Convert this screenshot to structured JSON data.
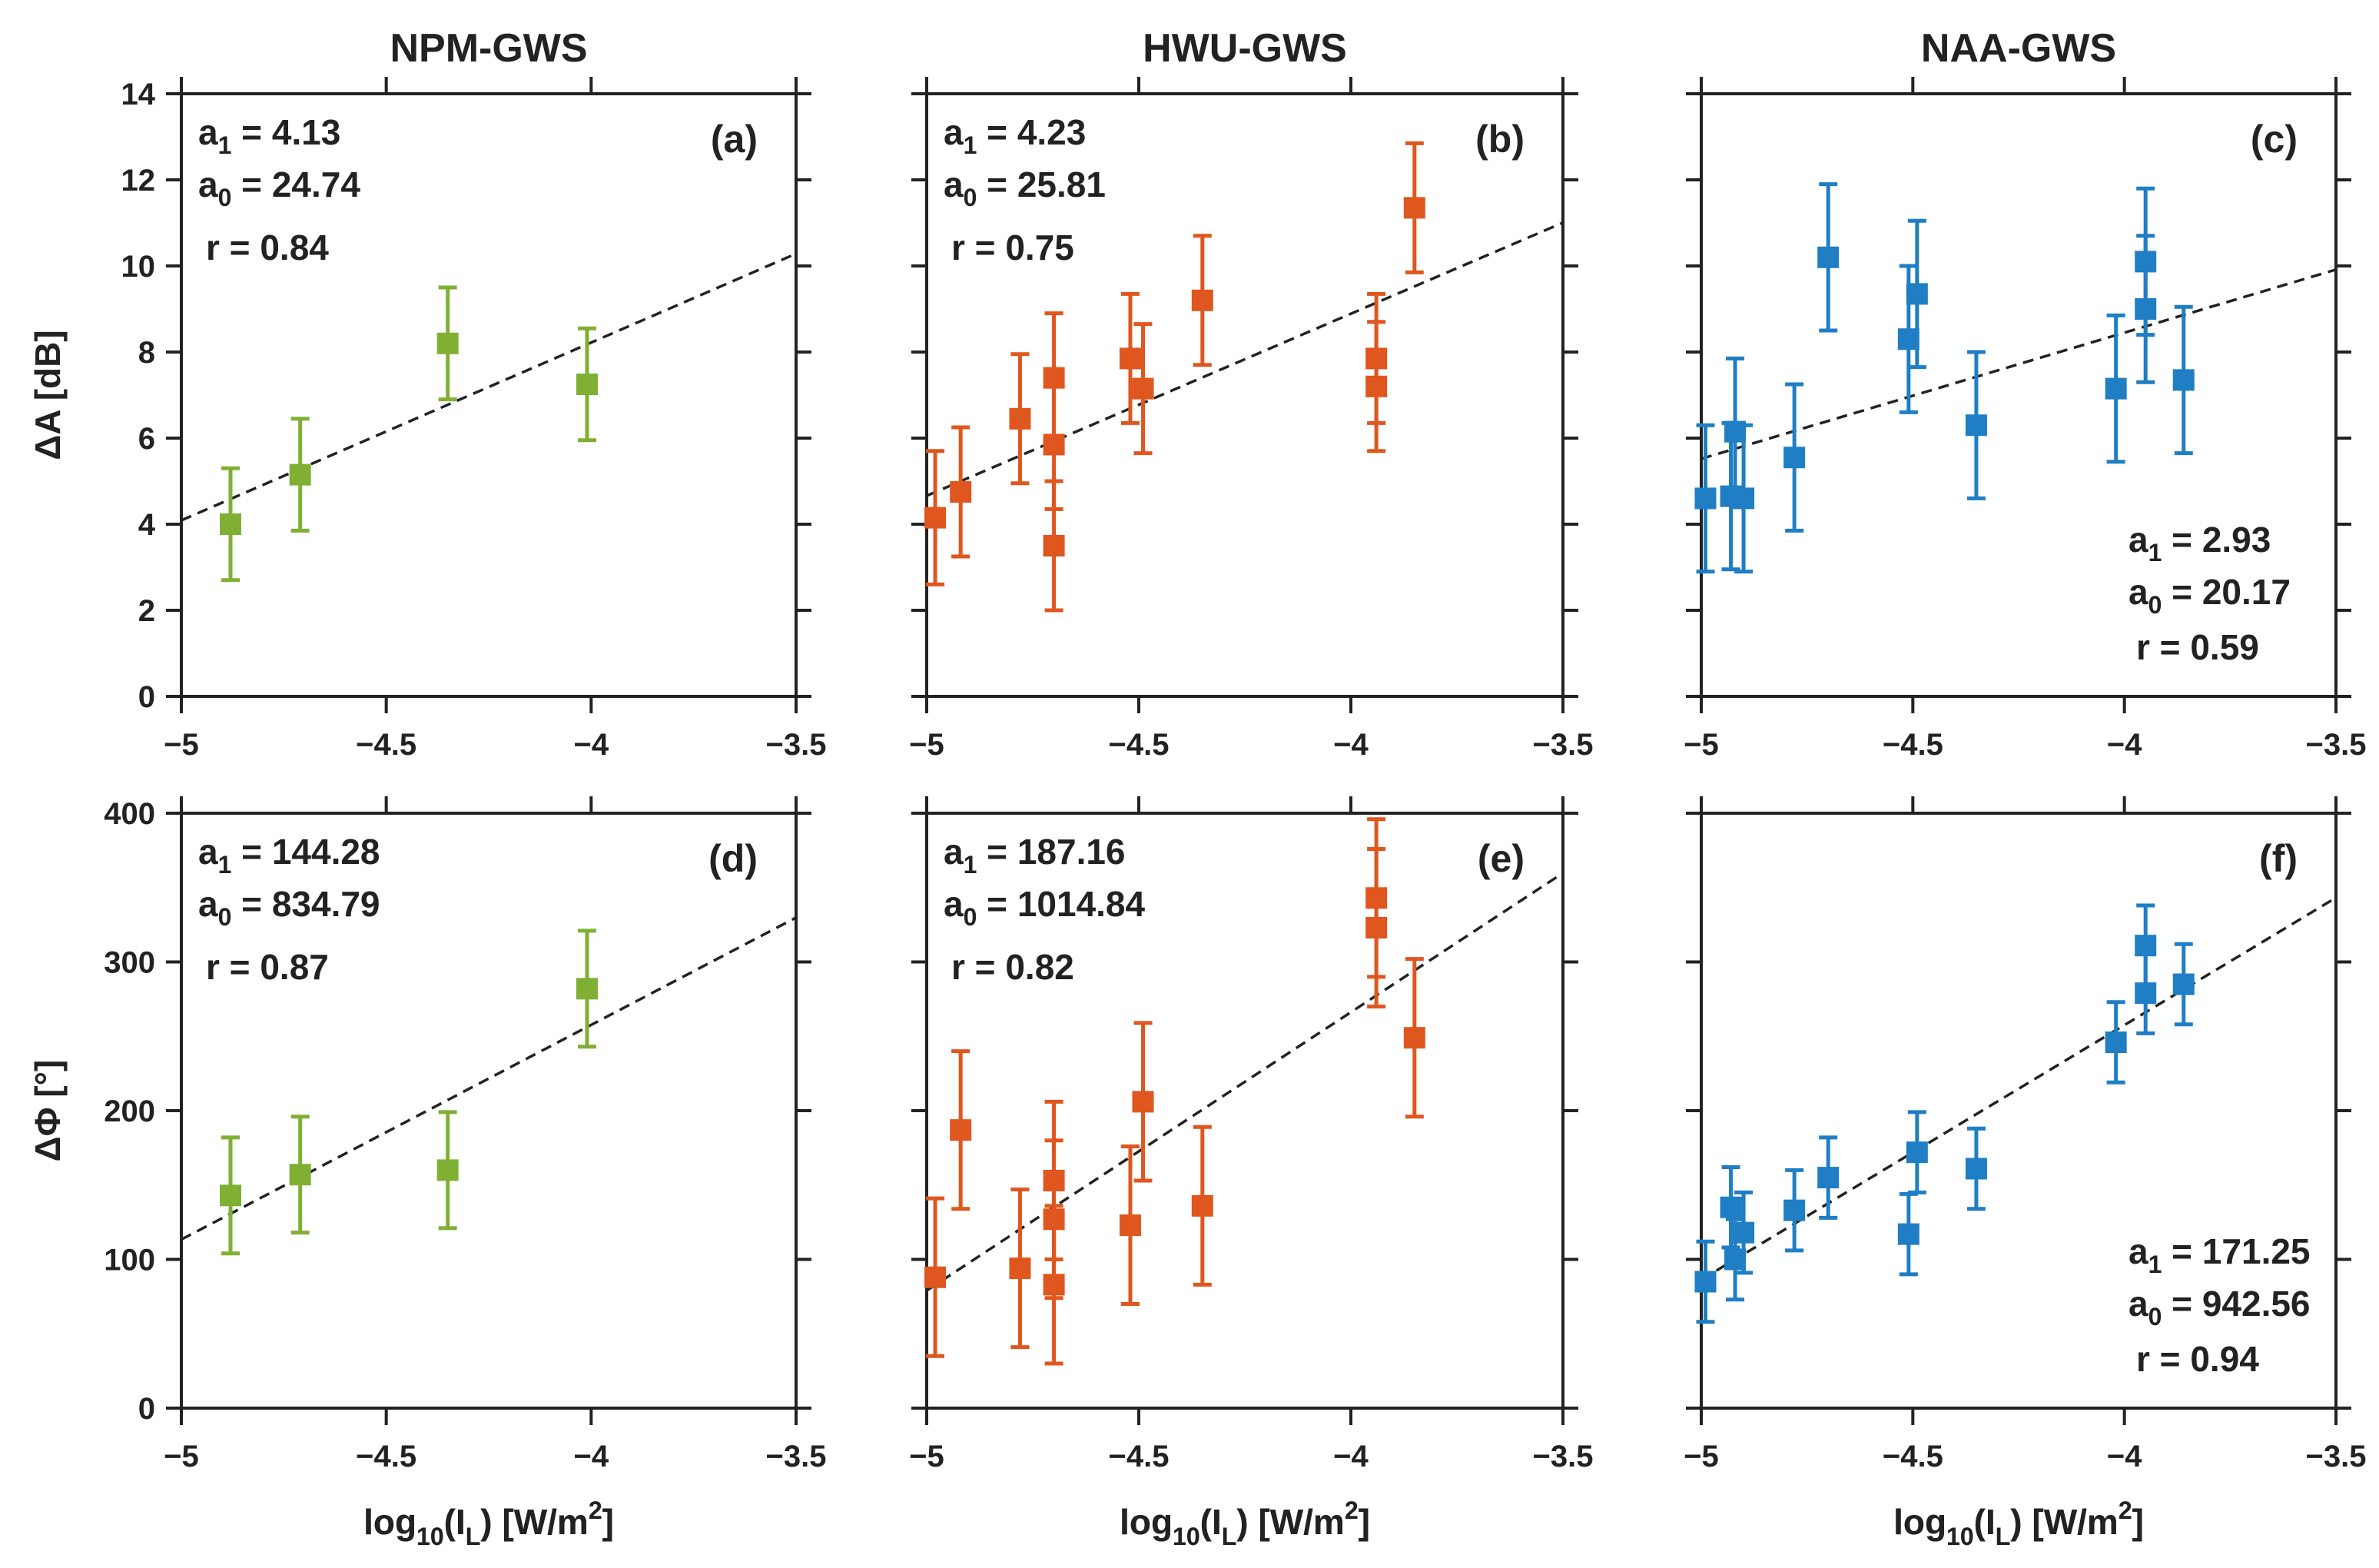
{
  "chart_data": [
    {
      "type": "scatter",
      "id": "a",
      "panel_label": "(a)",
      "column_title": "NPM-GWS",
      "xlabel": "log10(IL) [W/m2]",
      "ylabel": "ΔA [dB]",
      "xlim": [
        -5,
        -3.5
      ],
      "ylim": [
        0,
        14
      ],
      "xticks": [
        -5,
        -4.5,
        -4,
        -3.5
      ],
      "yticks": [
        0,
        2,
        4,
        6,
        8,
        10,
        12,
        14
      ],
      "color": "#7fb034",
      "points": [
        {
          "x": -4.88,
          "y": 4.0,
          "err": 1.3
        },
        {
          "x": -4.71,
          "y": 5.15,
          "err": 1.3
        },
        {
          "x": -4.35,
          "y": 8.2,
          "err": 1.3
        },
        {
          "x": -4.01,
          "y": 7.25,
          "err": 1.3
        }
      ],
      "fit": {
        "a1": "4.13",
        "a0": "24.74",
        "r": "0.84",
        "a1_val": 4.13,
        "a0_val": 24.74
      },
      "annotation_position": "top-left"
    },
    {
      "type": "scatter",
      "id": "b",
      "panel_label": "(b)",
      "column_title": "HWU-GWS",
      "xlabel": "log10(IL) [W/m2]",
      "ylabel": "",
      "xlim": [
        -5,
        -3.5
      ],
      "ylim": [
        0,
        14
      ],
      "xticks": [
        -5,
        -4.5,
        -4,
        -3.5
      ],
      "yticks": [
        0,
        2,
        4,
        6,
        8,
        10,
        12,
        14
      ],
      "color": "#e0561f",
      "points": [
        {
          "x": -4.98,
          "y": 4.15,
          "err": 1.55
        },
        {
          "x": -4.92,
          "y": 4.75,
          "err": 1.5
        },
        {
          "x": -4.78,
          "y": 6.45,
          "err": 1.5
        },
        {
          "x": -4.7,
          "y": 7.4,
          "err": 1.5
        },
        {
          "x": -4.7,
          "y": 5.85,
          "err": 1.5
        },
        {
          "x": -4.7,
          "y": 3.5,
          "err": 1.5
        },
        {
          "x": -4.52,
          "y": 7.85,
          "err": 1.5
        },
        {
          "x": -4.49,
          "y": 7.15,
          "err": 1.5
        },
        {
          "x": -4.35,
          "y": 9.2,
          "err": 1.5
        },
        {
          "x": -3.94,
          "y": 7.85,
          "err": 1.5
        },
        {
          "x": -3.94,
          "y": 7.2,
          "err": 1.5
        },
        {
          "x": -3.85,
          "y": 11.35,
          "err": 1.5
        }
      ],
      "fit": {
        "a1": "4.23",
        "a0": "25.81",
        "r": "0.75",
        "a1_val": 4.23,
        "a0_val": 25.81
      },
      "annotation_position": "top-left"
    },
    {
      "type": "scatter",
      "id": "c",
      "panel_label": "(c)",
      "column_title": "NAA-GWS",
      "xlabel": "log10(IL) [W/m2]",
      "ylabel": "",
      "xlim": [
        -5,
        -3.5
      ],
      "ylim": [
        0,
        14
      ],
      "xticks": [
        -5,
        -4.5,
        -4,
        -3.5
      ],
      "yticks": [
        0,
        2,
        4,
        6,
        8,
        10,
        12,
        14
      ],
      "color": "#1f7ec4",
      "points": [
        {
          "x": -4.99,
          "y": 4.6,
          "err": 1.7
        },
        {
          "x": -4.93,
          "y": 4.65,
          "err": 1.7
        },
        {
          "x": -4.92,
          "y": 6.15,
          "err": 1.7
        },
        {
          "x": -4.9,
          "y": 4.6,
          "err": 1.7
        },
        {
          "x": -4.78,
          "y": 5.55,
          "err": 1.7
        },
        {
          "x": -4.7,
          "y": 10.2,
          "err": 1.7
        },
        {
          "x": -4.51,
          "y": 8.3,
          "err": 1.7
        },
        {
          "x": -4.49,
          "y": 9.35,
          "err": 1.7
        },
        {
          "x": -4.35,
          "y": 6.3,
          "err": 1.7
        },
        {
          "x": -4.02,
          "y": 7.15,
          "err": 1.7
        },
        {
          "x": -3.95,
          "y": 9.0,
          "err": 1.7
        },
        {
          "x": -3.95,
          "y": 10.1,
          "err": 1.7
        },
        {
          "x": -3.86,
          "y": 7.35,
          "err": 1.7
        }
      ],
      "fit": {
        "a1": "2.93",
        "a0": "20.17",
        "r": "0.59",
        "a1_val": 2.93,
        "a0_val": 20.17
      },
      "annotation_position": "bottom-right"
    },
    {
      "type": "scatter",
      "id": "d",
      "panel_label": "(d)",
      "column_title": "",
      "xlabel": "log10(IL) [W/m2]",
      "ylabel": "ΔΦ [°]",
      "xlim": [
        -5,
        -3.5
      ],
      "ylim": [
        0,
        400
      ],
      "xticks": [
        -5,
        -4.5,
        -4,
        -3.5
      ],
      "yticks": [
        0,
        100,
        200,
        300,
        400
      ],
      "color": "#7fb034",
      "points": [
        {
          "x": -4.88,
          "y": 143,
          "err": 39
        },
        {
          "x": -4.71,
          "y": 157,
          "err": 39
        },
        {
          "x": -4.35,
          "y": 160,
          "err": 39
        },
        {
          "x": -4.01,
          "y": 282,
          "err": 39
        }
      ],
      "fit": {
        "a1": "144.28",
        "a0": "834.79",
        "r": "0.87",
        "a1_val": 144.28,
        "a0_val": 834.79
      },
      "annotation_position": "top-left"
    },
    {
      "type": "scatter",
      "id": "e",
      "panel_label": "(e)",
      "column_title": "",
      "xlabel": "log10(IL) [W/m2]",
      "ylabel": "",
      "xlim": [
        -5,
        -3.5
      ],
      "ylim": [
        0,
        400
      ],
      "xticks": [
        -5,
        -4.5,
        -4,
        -3.5
      ],
      "yticks": [
        0,
        100,
        200,
        300,
        400
      ],
      "color": "#e0561f",
      "points": [
        {
          "x": -4.98,
          "y": 88,
          "err": 53
        },
        {
          "x": -4.92,
          "y": 187,
          "err": 53
        },
        {
          "x": -4.78,
          "y": 94,
          "err": 53
        },
        {
          "x": -4.7,
          "y": 153,
          "err": 53
        },
        {
          "x": -4.7,
          "y": 127,
          "err": 53
        },
        {
          "x": -4.7,
          "y": 83,
          "err": 53
        },
        {
          "x": -4.52,
          "y": 123,
          "err": 53
        },
        {
          "x": -4.49,
          "y": 206,
          "err": 53
        },
        {
          "x": -4.35,
          "y": 136,
          "err": 53
        },
        {
          "x": -3.94,
          "y": 343,
          "err": 53
        },
        {
          "x": -3.94,
          "y": 323,
          "err": 53
        },
        {
          "x": -3.85,
          "y": 249,
          "err": 53
        }
      ],
      "fit": {
        "a1": "187.16",
        "a0": "1014.84",
        "r": "0.82",
        "a1_val": 187.16,
        "a0_val": 1014.84
      },
      "annotation_position": "top-left"
    },
    {
      "type": "scatter",
      "id": "f",
      "panel_label": "(f)",
      "column_title": "",
      "xlabel": "log10(IL) [W/m2]",
      "ylabel": "",
      "xlim": [
        -5,
        -3.5
      ],
      "ylim": [
        0,
        400
      ],
      "xticks": [
        -5,
        -4.5,
        -4,
        -3.5
      ],
      "yticks": [
        0,
        100,
        200,
        300,
        400
      ],
      "color": "#1f7ec4",
      "points": [
        {
          "x": -4.99,
          "y": 85,
          "err": 27
        },
        {
          "x": -4.93,
          "y": 135,
          "err": 27
        },
        {
          "x": -4.92,
          "y": 100,
          "err": 27
        },
        {
          "x": -4.9,
          "y": 118,
          "err": 27
        },
        {
          "x": -4.78,
          "y": 133,
          "err": 27
        },
        {
          "x": -4.7,
          "y": 155,
          "err": 27
        },
        {
          "x": -4.51,
          "y": 117,
          "err": 27
        },
        {
          "x": -4.49,
          "y": 172,
          "err": 27
        },
        {
          "x": -4.35,
          "y": 161,
          "err": 27
        },
        {
          "x": -4.02,
          "y": 246,
          "err": 27
        },
        {
          "x": -3.95,
          "y": 311,
          "err": 27
        },
        {
          "x": -3.95,
          "y": 279,
          "err": 27
        },
        {
          "x": -3.86,
          "y": 285,
          "err": 27
        }
      ],
      "fit": {
        "a1": "171.25",
        "a0": "942.56",
        "r": "0.94",
        "a1_val": 171.25,
        "a0_val": 942.56
      },
      "annotation_position": "bottom-right"
    }
  ],
  "labels": {
    "fit_a1": "a",
    "fit_a1_sub": "1",
    "fit_a0": "a",
    "fit_a0_sub": "0",
    "fit_r": "r",
    "xlabel_prefix": "log",
    "xlabel_sub1": "10",
    "xlabel_mid": "(I",
    "xlabel_sub2": "L",
    "xlabel_unit": ") [W/m",
    "xlabel_sup": "2",
    "xlabel_end": "]"
  }
}
